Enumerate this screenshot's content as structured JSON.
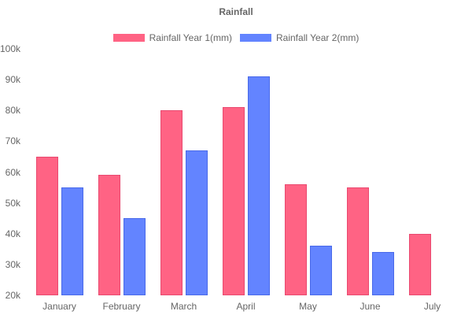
{
  "colors": {
    "background": "#ffffff",
    "text": "#666666"
  },
  "chart_data": {
    "type": "bar",
    "title": "Rainfall",
    "categories": [
      "January",
      "February",
      "March",
      "April",
      "May",
      "June",
      "July"
    ],
    "series": [
      {
        "name": "Rainfall Year 1(mm)",
        "color": "#FF6384",
        "border_color": "#e9496f",
        "values": [
          65000,
          59000,
          80000,
          81000,
          56000,
          55000,
          40000
        ]
      },
      {
        "name": "Rainfall Year 2(mm)",
        "color": "#6384FF",
        "border_color": "#4969e9",
        "values": [
          55000,
          45000,
          67000,
          91000,
          36000,
          34000,
          null
        ]
      }
    ],
    "xlabel": "",
    "ylabel": "",
    "ylim": [
      20000,
      100000
    ],
    "ytick_step": 10000,
    "ytick_labels": [
      "100k",
      "90k",
      "80k",
      "70k",
      "60k",
      "50k",
      "40k",
      "30k",
      "20k"
    ],
    "grid": false,
    "legend_position": "top"
  }
}
